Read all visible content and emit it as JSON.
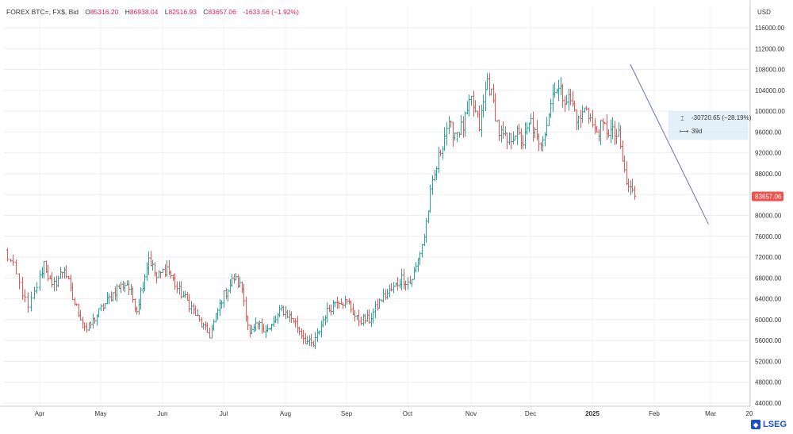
{
  "header": {
    "symbol": "FOREX BTC=, FX$, Bid",
    "open_label": "O",
    "open": "85316.20",
    "high_label": "H",
    "high": "86938.04",
    "low_label": "L",
    "low": "82516.93",
    "close_label": "C",
    "close": "83657.06",
    "change": "-1633.56 (−1.92%)"
  },
  "axis": {
    "currency": "USD"
  },
  "measure": {
    "change_text": "-30720.65 (−28.19%)",
    "duration_text": "39d"
  },
  "last_price": "83657.06",
  "brand": "LSEG",
  "colors": {
    "up": "#26a69a",
    "down": "#ef5350",
    "trend": "#6b72b8",
    "measure_fill": "#dcebf7",
    "price_tag": "#ef5350"
  },
  "chart_data": {
    "type": "ohlc",
    "y_ticks": [
      "44000.00",
      "48000.00",
      "52000.00",
      "56000.00",
      "60000.00",
      "64000.00",
      "68000.00",
      "72000.00",
      "76000.00",
      "80000.00",
      "84000.00",
      "88000.00",
      "92000.00",
      "96000.00",
      "100000.00",
      "104000.00",
      "108000.00",
      "112000.00",
      "116000.00"
    ],
    "x_ticks": [
      "Apr",
      "May",
      "Jun",
      "Jul",
      "Aug",
      "Sep",
      "Oct",
      "Nov",
      "Dec",
      "2025",
      "Feb",
      "Mar",
      "20"
    ],
    "bold_x_tick": "2025",
    "ylim": [
      42000,
      120000
    ],
    "anchors": [
      [
        0,
        73000
      ],
      [
        3,
        70000
      ],
      [
        8,
        62000
      ],
      [
        14,
        71000
      ],
      [
        18,
        66000
      ],
      [
        24,
        70000
      ],
      [
        28,
        64000
      ],
      [
        35,
        58000
      ],
      [
        42,
        62000
      ],
      [
        50,
        66000
      ],
      [
        55,
        67000
      ],
      [
        60,
        62000
      ],
      [
        66,
        72000
      ],
      [
        70,
        68000
      ],
      [
        75,
        70000
      ],
      [
        80,
        66000
      ],
      [
        86,
        63000
      ],
      [
        92,
        59000
      ],
      [
        96,
        57000
      ],
      [
        102,
        64000
      ],
      [
        108,
        68000
      ],
      [
        112,
        66000
      ],
      [
        116,
        57000
      ],
      [
        120,
        59000
      ],
      [
        126,
        58000
      ],
      [
        132,
        62000
      ],
      [
        138,
        60000
      ],
      [
        144,
        56000
      ],
      [
        148,
        55000
      ],
      [
        154,
        61000
      ],
      [
        160,
        64000
      ],
      [
        166,
        63000
      ],
      [
        170,
        60000
      ],
      [
        176,
        60000
      ],
      [
        182,
        64000
      ],
      [
        188,
        66000
      ],
      [
        192,
        68000
      ],
      [
        196,
        67000
      ],
      [
        199,
        70000
      ],
      [
        203,
        76000
      ],
      [
        206,
        84000
      ],
      [
        210,
        91000
      ],
      [
        214,
        97000
      ],
      [
        218,
        96000
      ],
      [
        222,
        97000
      ],
      [
        226,
        102000
      ],
      [
        230,
        97000
      ],
      [
        234,
        106000
      ],
      [
        236,
        103000
      ],
      [
        240,
        96000
      ],
      [
        244,
        94000
      ],
      [
        248,
        96000
      ],
      [
        252,
        94000
      ],
      [
        256,
        98000
      ],
      [
        260,
        93000
      ],
      [
        264,
        98000
      ],
      [
        268,
        105000
      ],
      [
        272,
        103000
      ],
      [
        276,
        102000
      ],
      [
        280,
        98000
      ],
      [
        284,
        101000
      ],
      [
        288,
        96000
      ],
      [
        292,
        97000
      ],
      [
        296,
        96000
      ],
      [
        300,
        95000
      ],
      [
        304,
        86000
      ],
      [
        306,
        85000
      ],
      [
        308,
        83657
      ]
    ],
    "trendline": {
      "from": [
        "2025-01-20",
        109000
      ],
      "to": [
        "2025-02-28",
        78300
      ]
    },
    "measure_box": {
      "from_date": "2025-02-08",
      "to_date": "2025-03-31",
      "y_top": 100000,
      "y_bottom": 94500
    }
  }
}
